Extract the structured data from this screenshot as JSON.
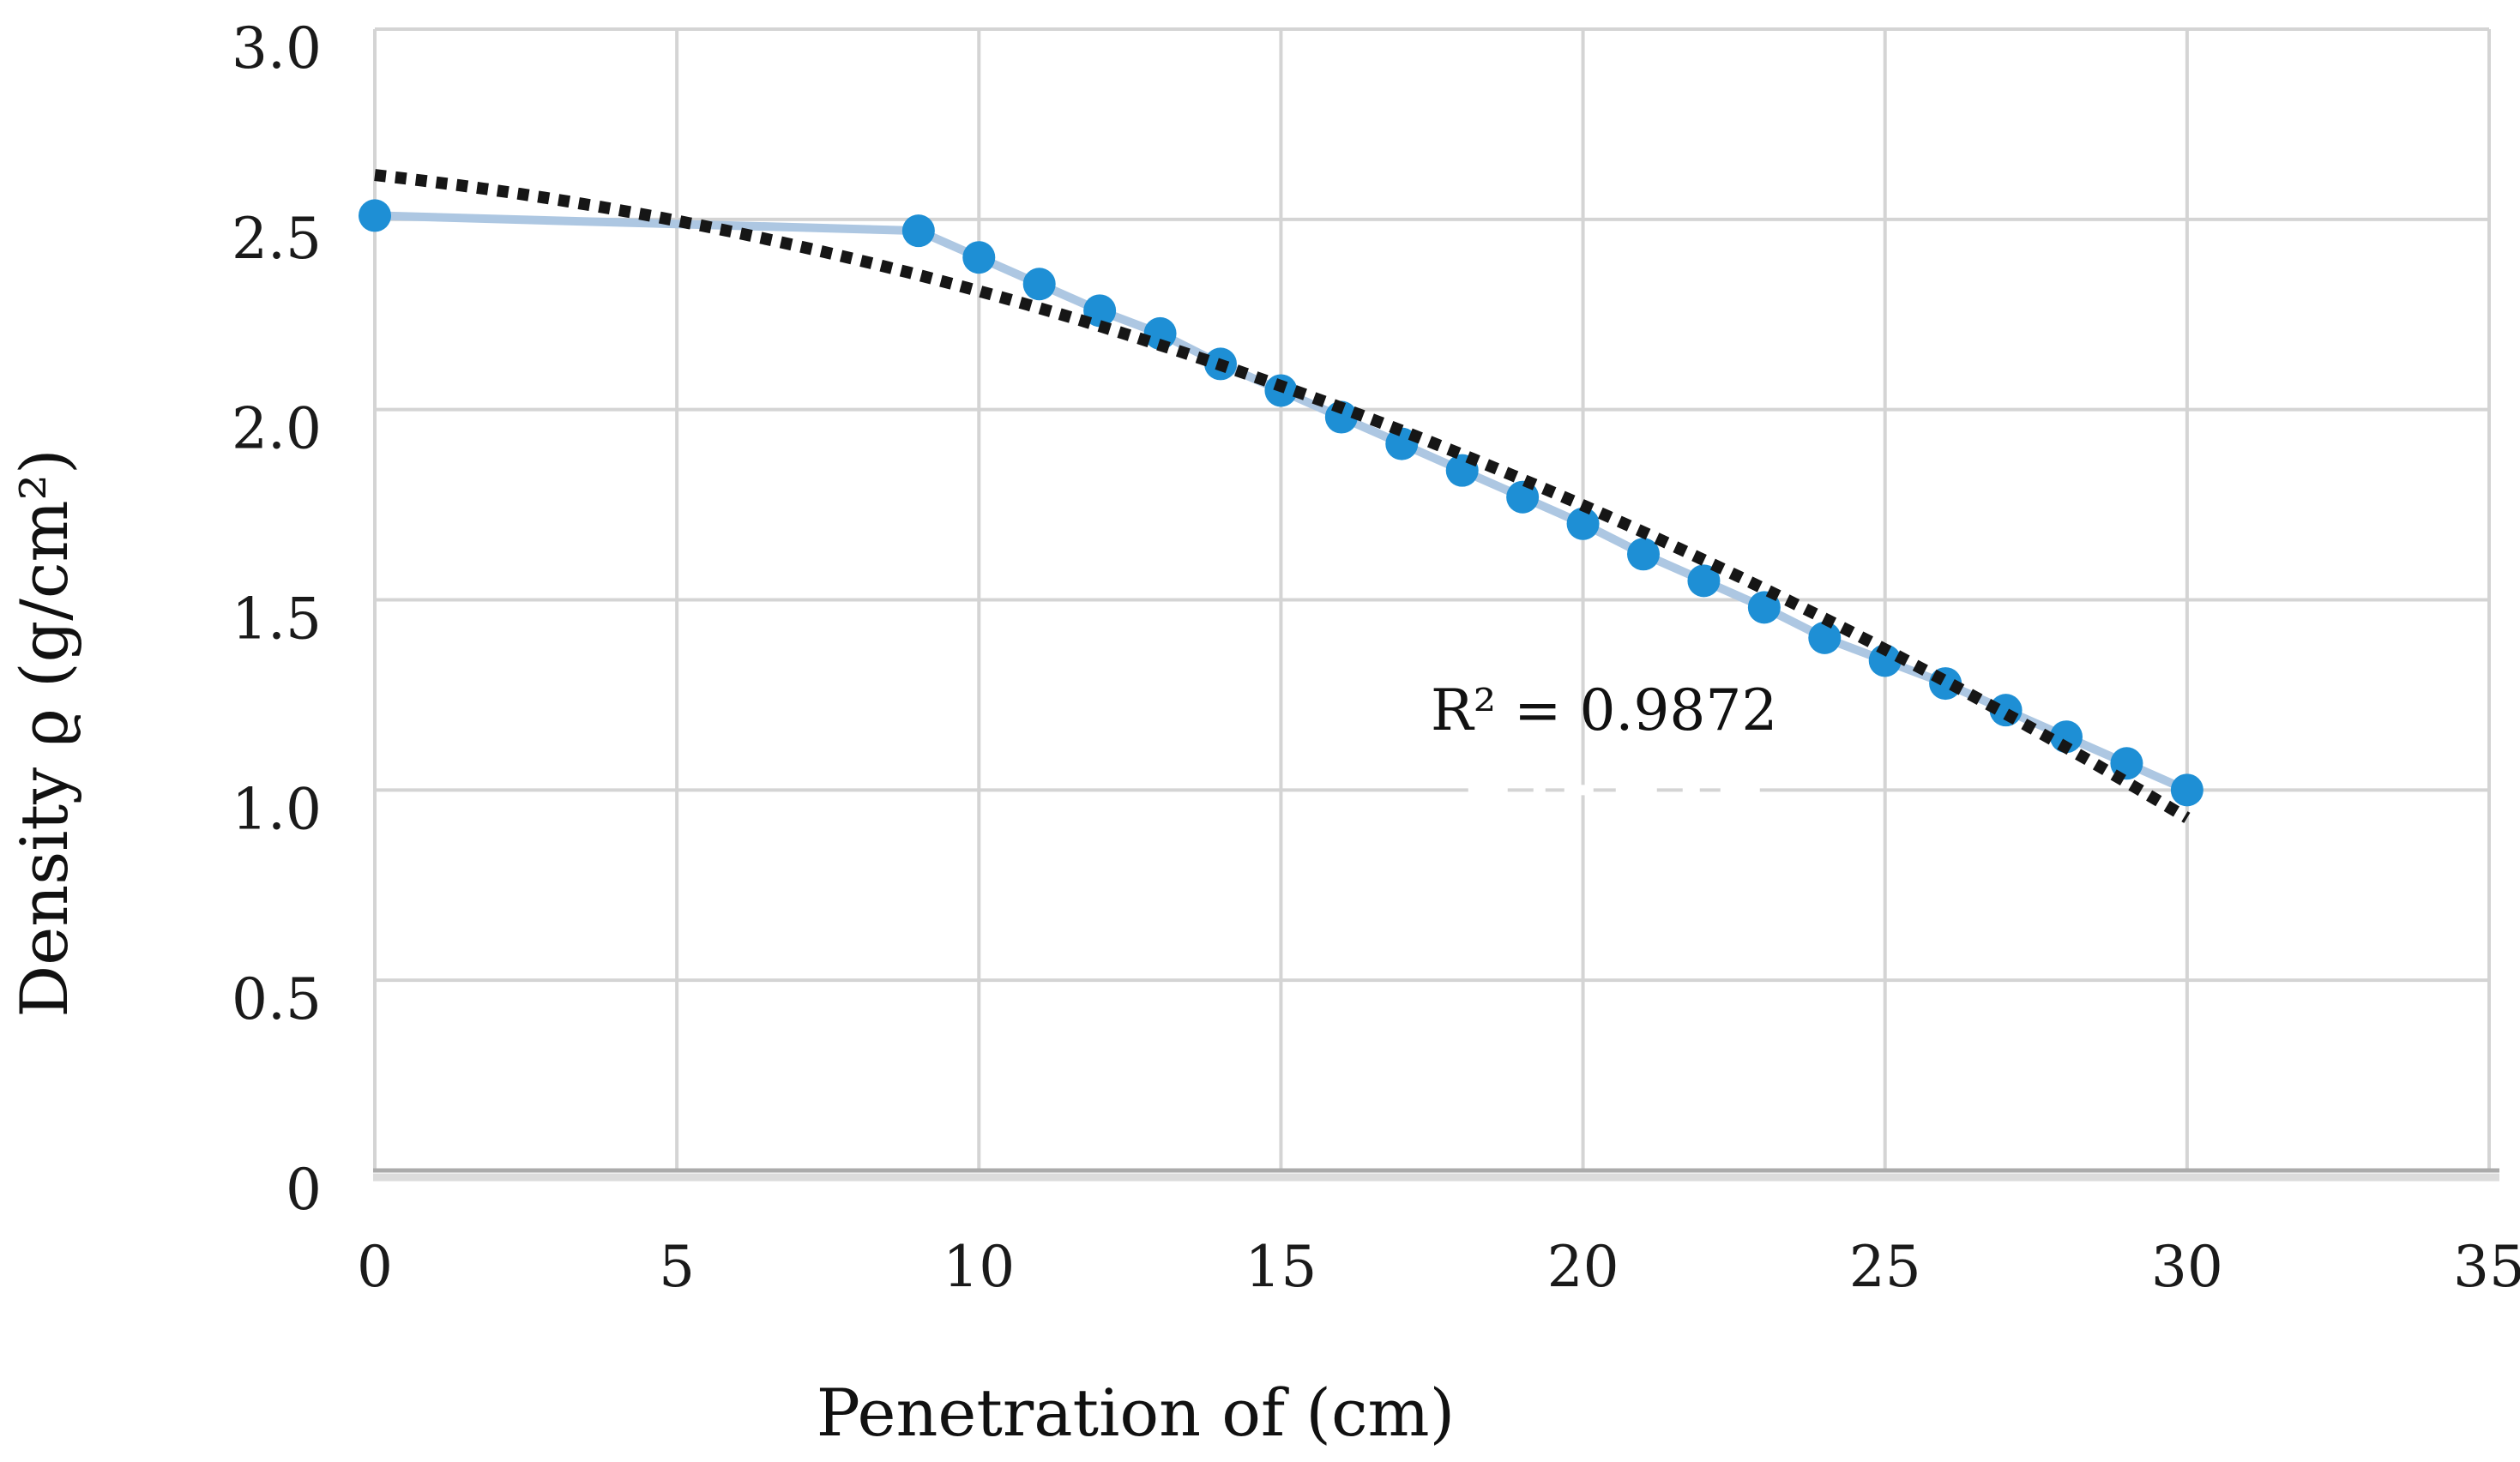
{
  "figure": {
    "background_color": "#FFFFFF"
  },
  "chart_data": {
    "type": "scatter",
    "title": "",
    "xlabel": "Penetration of (cm)",
    "ylabel": "Density ϱ (g/cm²)",
    "xlim": [
      0,
      35
    ],
    "ylim": [
      0,
      3.0
    ],
    "grid": true,
    "x_ticks": [
      {
        "value": 0,
        "label": "0"
      },
      {
        "value": 5,
        "label": "5"
      },
      {
        "value": 10,
        "label": "10"
      },
      {
        "value": 15,
        "label": "15"
      },
      {
        "value": 20,
        "label": "20"
      },
      {
        "value": 25,
        "label": "25"
      },
      {
        "value": 30,
        "label": "30"
      },
      {
        "value": 35,
        "label": "35"
      }
    ],
    "y_ticks": [
      {
        "value": 3.0,
        "label": "3.0"
      },
      {
        "value": 2.5,
        "label": "2.5"
      },
      {
        "value": 2.0,
        "label": "2.0"
      },
      {
        "value": 1.5,
        "label": "1.5"
      },
      {
        "value": 1.0,
        "label": "1.0"
      },
      {
        "value": 0.5,
        "label": "0.5"
      },
      {
        "value": 0,
        "label": "0"
      }
    ],
    "series": [
      {
        "name": "density-vs-penetration",
        "marker": "circle",
        "marker_color": "#1E8FD5",
        "line_color": "#ADC7E2",
        "points": [
          [
            0,
            2.51
          ],
          [
            9,
            2.47
          ],
          [
            10,
            2.4
          ],
          [
            11,
            2.33
          ],
          [
            12,
            2.26
          ],
          [
            13,
            2.2
          ],
          [
            14,
            2.12
          ],
          [
            15,
            2.05
          ],
          [
            16,
            1.98
          ],
          [
            17,
            1.91
          ],
          [
            18,
            1.84
          ],
          [
            19,
            1.77
          ],
          [
            20,
            1.7
          ],
          [
            21,
            1.62
          ],
          [
            22,
            1.55
          ],
          [
            23,
            1.48
          ],
          [
            24,
            1.4
          ],
          [
            25,
            1.34
          ],
          [
            26,
            1.28
          ],
          [
            27,
            1.21
          ],
          [
            28,
            1.14
          ],
          [
            29,
            1.07
          ],
          [
            30,
            1.0
          ]
        ]
      }
    ],
    "trendline": {
      "style": "dotted",
      "color": "#161616",
      "type": "polynomial",
      "order": 2,
      "coefficients": {
        "a": -0.0012915,
        "b": -0.017586,
        "c": 2.6166
      },
      "x_range": [
        0,
        30.05
      ],
      "label": "R² = 0.9872",
      "label_position": {
        "x": 20.35,
        "y": 1.21
      }
    },
    "gridline_break_artifact": {
      "y": 1.0,
      "x_range": [
        18.1,
        23.2
      ],
      "color": "#FFFFFF"
    },
    "colors": {
      "gridline": "#D4D4D4",
      "axis_line": "#ABABAB",
      "axis_line_shadow": "#DCDCDC",
      "text": "#1A1A1A"
    }
  }
}
